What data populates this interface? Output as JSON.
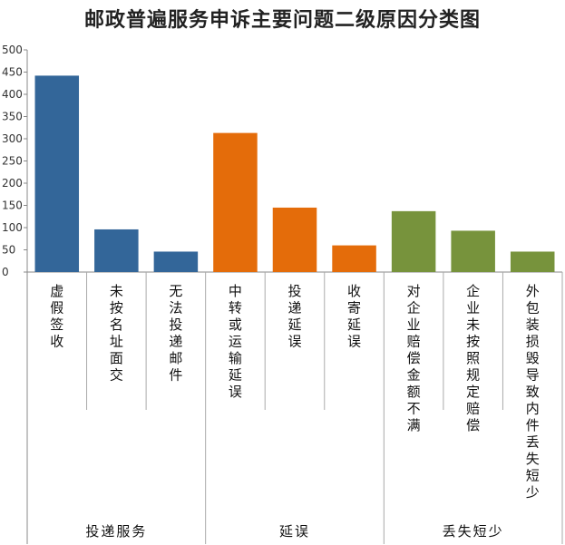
{
  "chart_data": {
    "type": "bar",
    "title": "邮政普遍服务申诉主要问题二级原因分类图",
    "xlabel": "",
    "ylabel": "",
    "ylim": [
      0,
      500
    ],
    "yticks": [
      0,
      50,
      100,
      150,
      200,
      250,
      300,
      350,
      400,
      450,
      500
    ],
    "grid": false,
    "legend": "none",
    "groups": [
      {
        "name": "投递服务",
        "color": "#336699",
        "categories": [
          "虚假签收",
          "未按名址面交",
          "无法投递邮件"
        ],
        "values": [
          442,
          96,
          46
        ]
      },
      {
        "name": "延误",
        "color": "#E46C0A",
        "categories": [
          "中转或运输延误",
          "投递延误",
          "收寄延误"
        ],
        "values": [
          313,
          145,
          60
        ]
      },
      {
        "name": "丢失短少",
        "color": "#77933C",
        "categories": [
          "对企业赔偿金额不满",
          "企业未按照规定赔偿",
          "外包装损毁导致内件丢失短少"
        ],
        "values": [
          137,
          93,
          46
        ]
      }
    ]
  }
}
